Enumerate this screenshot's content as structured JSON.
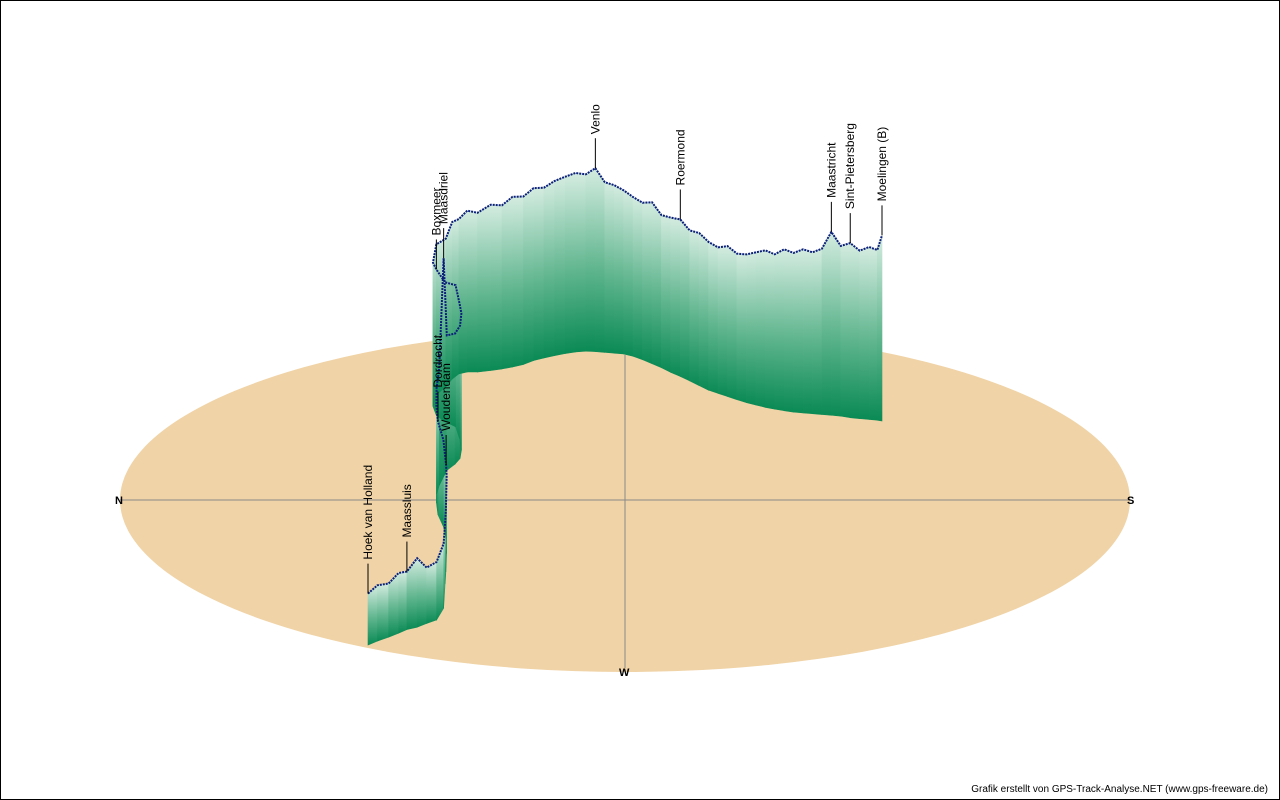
{
  "chart_data": {
    "type": "area",
    "title": "",
    "compass": {
      "north": "N",
      "south": "S",
      "west": "W"
    },
    "colors": {
      "ground": "#f0d3a6",
      "profile_dark": "#0a8a55",
      "profile_light": "#c6e6d6",
      "track": "#0b1f7a",
      "axis": "#8a8a8a"
    },
    "waypoints": [
      {
        "name": "Hoek van Holland",
        "index": 0
      },
      {
        "name": "Maassluis",
        "index": 4
      },
      {
        "name": "Dordrecht",
        "index": 14
      },
      {
        "name": "Woudendam",
        "index": 12
      },
      {
        "name": "Maasdriel",
        "index": 18
      },
      {
        "name": "Boxmeer",
        "index": 26
      },
      {
        "name": "Venlo",
        "index": 44
      },
      {
        "name": "Roermond",
        "index": 53
      },
      {
        "name": "Maastricht",
        "index": 69
      },
      {
        "name": "Sint-Pietersberg",
        "index": 71
      },
      {
        "name": "Moelingen (B)",
        "index": 75
      }
    ],
    "elevation": [
      12,
      14,
      13,
      16,
      15,
      20,
      14,
      15,
      18,
      16,
      17,
      24,
      22,
      28,
      31,
      33,
      37,
      42,
      88,
      50,
      48,
      49,
      51,
      50,
      53,
      52,
      55,
      54,
      57,
      56,
      60,
      59,
      62,
      61,
      64,
      63,
      66,
      65,
      67,
      66,
      68,
      69,
      70,
      69,
      72,
      66,
      65,
      63,
      61,
      60,
      62,
      58,
      59,
      60,
      57,
      58,
      56,
      55,
      57,
      55,
      56,
      58,
      60,
      59,
      62,
      61,
      63,
      62,
      64,
      72,
      66,
      68,
      65,
      67,
      66,
      73
    ]
  },
  "credit": "Grafik erstellt von GPS-Track-Analyse.NET (www.gps-freeware.de)"
}
